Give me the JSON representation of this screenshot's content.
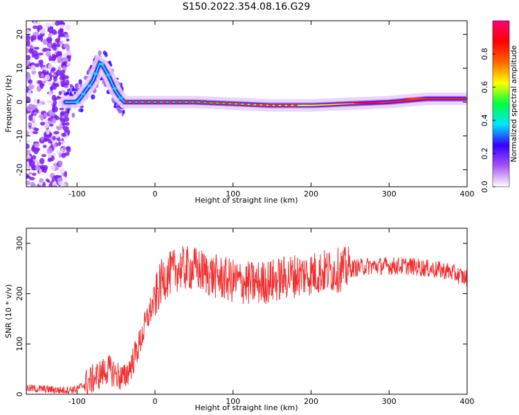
{
  "figure": {
    "title": "S150.2022.354.08.16.G29"
  },
  "chart_data": [
    {
      "type": "heatmap",
      "title": "",
      "xlabel": "Height of straight line (km)",
      "ylabel": "Frequency (Hz)",
      "xlim": [
        -165,
        400
      ],
      "ylim": [
        -25,
        24
      ],
      "xticks": [
        -100,
        0,
        100,
        200,
        300,
        400
      ],
      "yticks": [
        -20,
        -10,
        0,
        10,
        20
      ],
      "colorbar": {
        "label": "Normalized spectral amplitude",
        "range": [
          0.0,
          1.0
        ],
        "ticks": [
          0.0,
          0.2,
          0.4,
          0.6,
          0.8
        ],
        "colors": [
          "#ffffff",
          "#a855f7",
          "#3300ff",
          "#00e5ff",
          "#00ff40",
          "#ffff00",
          "#ff6600",
          "#ff0000",
          "#ff0077"
        ]
      },
      "ridge": {
        "x": [
          -100,
          -90,
          -80,
          -70,
          -60,
          -50,
          -40,
          0,
          50,
          100,
          150,
          200,
          250,
          300,
          350,
          400
        ],
        "freq": [
          0,
          3,
          6,
          12,
          8,
          3,
          0,
          0,
          0,
          -0.5,
          -1,
          -1,
          -0.5,
          0,
          1,
          1
        ]
      }
    },
    {
      "type": "line",
      "title": "",
      "xlabel": "Height of straight line (km)",
      "ylabel": "SNR (10 * v/v)",
      "xlim": [
        -165,
        400
      ],
      "ylim": [
        0,
        330
      ],
      "xticks": [
        -100,
        0,
        100,
        200,
        300,
        400
      ],
      "yticks": [
        0,
        100,
        200,
        300
      ],
      "color": "#f03030",
      "series": [
        {
          "x": [
            -165,
            -140,
            -120,
            -100,
            -80,
            -60,
            -50,
            -40,
            -30,
            -20,
            -10,
            0,
            10,
            20,
            30,
            50,
            75,
            100,
            125,
            150,
            175,
            200,
            225,
            250,
            275,
            300,
            325,
            350,
            375,
            400
          ],
          "values": [
            12,
            10,
            8,
            10,
            30,
            50,
            40,
            30,
            60,
            100,
            150,
            190,
            230,
            240,
            250,
            250,
            235,
            225,
            220,
            225,
            235,
            240,
            245,
            250,
            255,
            255,
            255,
            250,
            245,
            230
          ]
        }
      ]
    }
  ]
}
